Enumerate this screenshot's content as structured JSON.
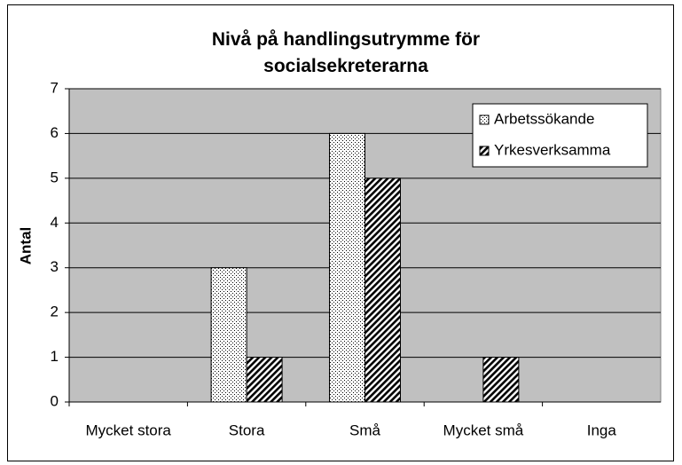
{
  "chart_data": {
    "type": "bar",
    "title": "Nivå på handlingsutrymme för socialsekreterarna",
    "ylabel": "Antal",
    "categories": [
      "Mycket stora",
      "Stora",
      "Små",
      "Mycket små",
      "Inga"
    ],
    "series": [
      {
        "name": "Arbetssökande",
        "color": "#000000",
        "pattern": "dots",
        "values": [
          0,
          3,
          6,
          0,
          0
        ]
      },
      {
        "name": "Yrkesverksamma",
        "color": "#000000",
        "pattern": "hatch",
        "values": [
          0,
          1,
          5,
          1,
          0
        ]
      }
    ],
    "ylim": [
      0,
      7
    ],
    "yticks": [
      0,
      1,
      2,
      3,
      4,
      5,
      6,
      7
    ],
    "grid": true,
    "legend": "upper right",
    "plot_background": "#c0c0c0"
  }
}
